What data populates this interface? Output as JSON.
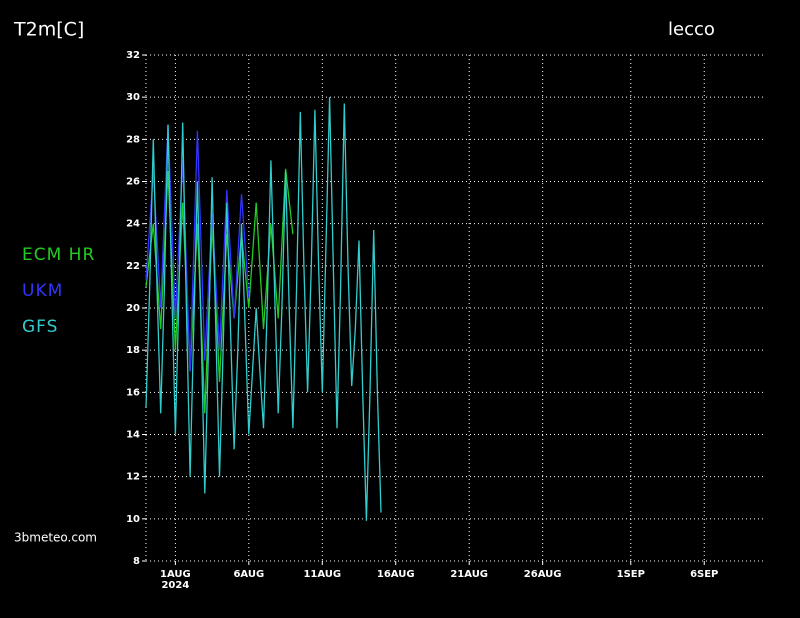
{
  "chart_data": {
    "type": "line",
    "title": "T2m[C]",
    "location": "lecco",
    "source": "3bmeteo.com",
    "year": "2024",
    "xlim": [
      -2,
      40
    ],
    "xticks": [
      {
        "value": 0,
        "label": "1AUG"
      },
      {
        "value": 5,
        "label": "6AUG"
      },
      {
        "value": 10,
        "label": "11AUG"
      },
      {
        "value": 15,
        "label": "16AUG"
      },
      {
        "value": 20,
        "label": "21AUG"
      },
      {
        "value": 25,
        "label": "26AUG"
      },
      {
        "value": 31,
        "label": "1SEP"
      },
      {
        "value": 36,
        "label": "6SEP"
      }
    ],
    "ylim": [
      8,
      32
    ],
    "yticks": [
      8,
      10,
      12,
      14,
      16,
      18,
      20,
      22,
      24,
      26,
      28,
      30,
      32
    ],
    "grid": true,
    "series": [
      {
        "name": "ECM HR",
        "color": "#22cc22",
        "x": [
          -2,
          -1.5,
          -1,
          -0.5,
          0,
          0.5,
          1,
          1.5,
          2,
          2.5,
          3,
          3.5,
          4,
          4.5,
          5,
          5.5,
          6,
          6.5,
          7,
          7.5,
          8
        ],
        "values": [
          21,
          24,
          19,
          26.5,
          18,
          25,
          17,
          24,
          15,
          24,
          16.5,
          23.5,
          19.5,
          23.5,
          20,
          25,
          19,
          24,
          19.5,
          26.6,
          23.5
        ]
      },
      {
        "name": "UKM",
        "color": "#3333ff",
        "x": [
          -2,
          -1.5,
          -1,
          -0.5,
          0,
          0.5,
          1,
          1.5,
          2,
          2.5,
          3,
          3.5,
          4,
          4.5,
          5
        ],
        "values": [
          21.3,
          26.5,
          20,
          28.7,
          19.5,
          27,
          17,
          28.4,
          17.5,
          24.5,
          18,
          25.6,
          19.5,
          25.4,
          20.5
        ]
      },
      {
        "name": "GFS",
        "color": "#33cccc",
        "x": [
          -2,
          -1.75,
          -1.5,
          -1.25,
          -1,
          -0.75,
          -0.5,
          -0.25,
          0,
          0.25,
          0.5,
          0.75,
          1,
          1.25,
          1.5,
          1.75,
          2,
          2.25,
          2.5,
          2.75,
          3,
          3.25,
          3.5,
          3.75,
          4,
          4.25,
          4.5,
          4.75,
          5,
          5.25,
          5.5,
          5.75,
          6,
          6.25,
          6.5,
          6.75,
          7,
          7.25,
          7.5,
          7.75,
          8,
          8.25,
          8.5,
          8.75,
          9,
          9.25,
          9.5,
          9.75,
          10,
          10.25,
          10.5,
          10.75,
          11,
          11.25,
          11.5,
          11.75,
          12,
          12.25,
          12.5,
          12.75,
          13,
          13.25,
          13.5,
          13.75,
          14
        ],
        "values": [
          15.3,
          21,
          28,
          21,
          15,
          21,
          28.7,
          21,
          14,
          21,
          28.8,
          20,
          12,
          19,
          26,
          19,
          11.2,
          18,
          26.2,
          19,
          12,
          18,
          25,
          19,
          13.3,
          18,
          24,
          19,
          14,
          17,
          20,
          17,
          14.3,
          20,
          27,
          21,
          15,
          20,
          26.5,
          20,
          14.3,
          21,
          29.3,
          22,
          16,
          22,
          29.4,
          22,
          16,
          23,
          30,
          22,
          14.3,
          21,
          29.7,
          22,
          16.3,
          19,
          23.2,
          16,
          9.9,
          16,
          23.7,
          16,
          10.3
        ]
      }
    ]
  }
}
